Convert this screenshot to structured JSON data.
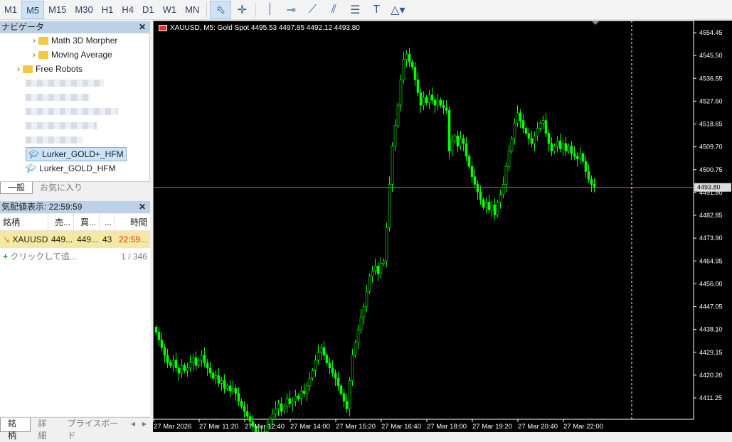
{
  "toolbar": {
    "timeframes": [
      "M1",
      "M5",
      "M15",
      "M30",
      "H1",
      "H4",
      "D1",
      "W1",
      "MN"
    ],
    "active_timeframe": "M5",
    "tools": [
      "cursor-icon",
      "crosshair-icon",
      "vertical-line-icon",
      "horizontal-line-icon",
      "trend-line-icon",
      "channel-icon",
      "fibonacci-icon",
      "text-icon",
      "shapes-icon"
    ]
  },
  "navigator": {
    "title": "ナビゲータ",
    "items": [
      {
        "label": "Math 3D Morpher",
        "type": "folder"
      },
      {
        "label": "Moving Average",
        "type": "folder"
      },
      {
        "label": "Free Robots",
        "type": "folder"
      },
      {
        "label": "Lurker_GOLD+_HFM",
        "type": "ea",
        "selected": true
      },
      {
        "label": "Lurker_GOLD_HFM",
        "type": "ea"
      }
    ],
    "tabs": [
      "一般",
      "お気に入り"
    ]
  },
  "market_watch": {
    "title": "気配値表示: 22:59:59",
    "columns": [
      "銘柄",
      "売...",
      "買...",
      "...",
      "時間"
    ],
    "rows": [
      {
        "symbol": "XAUUSD",
        "bid": "449...",
        "ask": "449...",
        "spread": "43",
        "time": "22:59..."
      }
    ],
    "add_label": "クリックして追...",
    "count": "1 / 346",
    "tabs": [
      "銘柄",
      "詳細",
      "プライスボード"
    ]
  },
  "chart": {
    "legend": "XAUUSD, M5:  Gold Spot  4495.53 4497.85 4492.12 4493.80",
    "current_price": "4493.80",
    "colors": {
      "background": "#000000",
      "candle": "#00ff00",
      "price_line": "#e05050"
    }
  },
  "chart_data": {
    "type": "candlestick",
    "symbol": "XAUUSD",
    "timeframe": "M5",
    "ylim": [
      4411.25,
      4554.45
    ],
    "yticks": [
      "4554.45",
      "4545.50",
      "4536.55",
      "4527.60",
      "4518.65",
      "4509.70",
      "4500.75",
      "4491.80",
      "4482.85",
      "4473.90",
      "4464.95",
      "4456.00",
      "4447.05",
      "4438.10",
      "4429.15",
      "4420.20",
      "4411.25"
    ],
    "xticks": [
      "27 Mar 2026",
      "27 Mar 11:20",
      "27 Mar 12:40",
      "27 Mar 14:00",
      "27 Mar 15:20",
      "27 Mar 16:40",
      "27 Mar 18:00",
      "27 Mar 19:20",
      "27 Mar 20:40",
      "27 Mar 22:00"
    ],
    "closes": [
      4437,
      4434,
      4431,
      4428,
      4425,
      4424,
      4426,
      4423,
      4421,
      4424,
      4422,
      4423,
      4425,
      4427,
      4424,
      4426,
      4428,
      4425,
      4423,
      4421,
      4419,
      4420,
      4417,
      4418,
      4415,
      4416,
      4414,
      4415,
      4413,
      4410,
      4408,
      4406,
      4404,
      4402,
      4400,
      4398,
      4397,
      4395,
      4398,
      4400,
      4403,
      4405,
      4407,
      4409,
      4406,
      4408,
      4411,
      4409,
      4410,
      4412,
      4411,
      4414,
      4413,
      4416,
      4419,
      4422,
      4426,
      4429,
      4431,
      4428,
      4425,
      4423,
      4421,
      4419,
      4416,
      4413,
      4410,
      4407,
      4418,
      4428,
      4433,
      4438,
      4443,
      4447,
      4453,
      4459,
      4461,
      4463,
      4460,
      4464,
      4465,
      4478,
      4495,
      4510,
      4518,
      4526,
      4536,
      4544,
      4546,
      4543,
      4541,
      4536,
      4531,
      4526,
      4529,
      4527,
      4530,
      4528,
      4526,
      4528,
      4526,
      4525,
      4524,
      4508,
      4512,
      4514,
      4510,
      4513,
      4511,
      4506,
      4502,
      4498,
      4495,
      4492,
      4489,
      4486,
      4488,
      4485,
      4487,
      4483,
      4488,
      4491,
      4495,
      4502,
      4508,
      4513,
      4519,
      4523,
      4520,
      4517,
      4515,
      4513,
      4511,
      4514,
      4517,
      4519,
      4520,
      4515,
      4511,
      4508,
      4510,
      4512,
      4509,
      4511,
      4508,
      4510,
      4507,
      4506,
      4505,
      4507,
      4504,
      4500,
      4497,
      4495,
      4493.8
    ]
  }
}
